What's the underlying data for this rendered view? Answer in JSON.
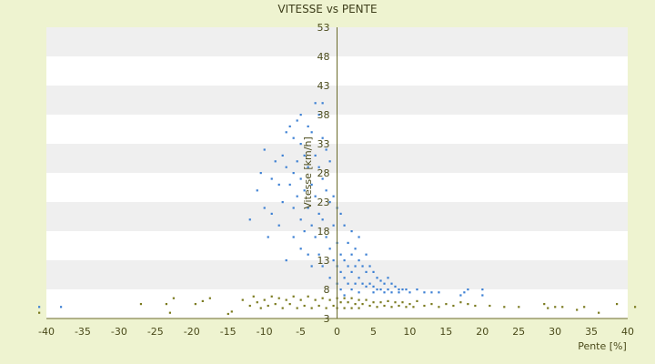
{
  "chart_data": {
    "type": "scatter",
    "title": "VITESSE vs PENTE",
    "xlabel": "Pente [%]",
    "ylabel": "Vitesse [km/h]",
    "xlim": [
      -40,
      40
    ],
    "ylim": [
      3,
      53
    ],
    "x_ticks": [
      "-40",
      "-35",
      "-30",
      "-25",
      "-20",
      "-15",
      "-10",
      "-5",
      "0",
      "5",
      "10",
      "15",
      "20",
      "25",
      "30",
      "35",
      "40"
    ],
    "y_ticks": [
      "3",
      "8",
      "13",
      "18",
      "23",
      "28",
      "33",
      "38",
      "43",
      "48",
      "53"
    ],
    "grid": "horizontal alternating bands",
    "legend": "none",
    "colors": {
      "background": "#eef3d0",
      "plot_band_white": "#ffffff",
      "plot_band_gray": "#efefef",
      "series_blue": "#3b7fd3",
      "series_olive": "#7a7a1e",
      "axis": "#6b6b2a"
    },
    "series": [
      {
        "color": "#3b7fd3",
        "points": [
          [
            -41,
            5.0
          ],
          [
            -38,
            5.0
          ],
          [
            -12,
            20.0
          ],
          [
            -11,
            25.0
          ],
          [
            -10.5,
            28.0
          ],
          [
            -10,
            32.0
          ],
          [
            -10,
            22.0
          ],
          [
            -9.5,
            17.0
          ],
          [
            -9,
            21.0
          ],
          [
            -9,
            27.0
          ],
          [
            -8.5,
            30.0
          ],
          [
            -8,
            26.0
          ],
          [
            -8,
            19.0
          ],
          [
            -7.5,
            23.0
          ],
          [
            -7.5,
            31.0
          ],
          [
            -7,
            35.0
          ],
          [
            -7,
            29.0
          ],
          [
            -7,
            13.0
          ],
          [
            -6.5,
            36.0
          ],
          [
            -6.5,
            26.0
          ],
          [
            -6,
            34.0
          ],
          [
            -6,
            28.0
          ],
          [
            -6,
            22.0
          ],
          [
            -6,
            17.0
          ],
          [
            -5.5,
            37.0
          ],
          [
            -5.5,
            30.0
          ],
          [
            -5.5,
            24.0
          ],
          [
            -5,
            38.0
          ],
          [
            -5,
            33.0
          ],
          [
            -5,
            27.0
          ],
          [
            -5,
            20.0
          ],
          [
            -5,
            15.0
          ],
          [
            -4.5,
            31.0
          ],
          [
            -4.5,
            25.0
          ],
          [
            -4.5,
            18.0
          ],
          [
            -4,
            36.0
          ],
          [
            -4,
            29.0
          ],
          [
            -4,
            22.0
          ],
          [
            -4,
            14.0
          ],
          [
            -3.5,
            35.0
          ],
          [
            -3.5,
            26.0
          ],
          [
            -3.5,
            19.0
          ],
          [
            -3.5,
            12.0
          ],
          [
            -3,
            40.0
          ],
          [
            -3,
            31.0
          ],
          [
            -3,
            24.0
          ],
          [
            -3,
            17.0
          ],
          [
            -2.5,
            38.0
          ],
          [
            -2.5,
            29.0
          ],
          [
            -2.5,
            21.0
          ],
          [
            -2.5,
            14.0
          ],
          [
            -2,
            40.0
          ],
          [
            -2,
            34.0
          ],
          [
            -2,
            27.0
          ],
          [
            -2,
            20.0
          ],
          [
            -2,
            12.0
          ],
          [
            -1.5,
            32.0
          ],
          [
            -1.5,
            25.0
          ],
          [
            -1.5,
            17.0
          ],
          [
            -1,
            30.0
          ],
          [
            -1,
            23.0
          ],
          [
            -1,
            15.0
          ],
          [
            -1,
            10.0
          ],
          [
            -0.5,
            24.0
          ],
          [
            -0.5,
            19.0
          ],
          [
            -0.5,
            13.0
          ],
          [
            0,
            22.0
          ],
          [
            0,
            16.0
          ],
          [
            0,
            12.0
          ],
          [
            0,
            9.0
          ],
          [
            0.5,
            21.0
          ],
          [
            0.5,
            14.0
          ],
          [
            0.5,
            11.0
          ],
          [
            0.5,
            8.0
          ],
          [
            1,
            19.0
          ],
          [
            1,
            13.0
          ],
          [
            1,
            10.0
          ],
          [
            1,
            7.0
          ],
          [
            1.5,
            16.0
          ],
          [
            1.5,
            12.0
          ],
          [
            1.5,
            9.0
          ],
          [
            2,
            18.0
          ],
          [
            2,
            14.0
          ],
          [
            2,
            11.0
          ],
          [
            2,
            8.0
          ],
          [
            2.5,
            15.0
          ],
          [
            2.5,
            12.0
          ],
          [
            2.5,
            9.0
          ],
          [
            3,
            17.0
          ],
          [
            3,
            13.0
          ],
          [
            3,
            10.0
          ],
          [
            3,
            7.5
          ],
          [
            3.5,
            12.0
          ],
          [
            3.5,
            9.0
          ],
          [
            4,
            14.0
          ],
          [
            4,
            11.0
          ],
          [
            4,
            8.5
          ],
          [
            4.5,
            12.0
          ],
          [
            4.5,
            9.0
          ],
          [
            5,
            11.0
          ],
          [
            5,
            8.5
          ],
          [
            5,
            7.5
          ],
          [
            5.5,
            10.0
          ],
          [
            5.5,
            8.0
          ],
          [
            6,
            9.5
          ],
          [
            6,
            8.0
          ],
          [
            6.5,
            9.0
          ],
          [
            6.5,
            7.5
          ],
          [
            7,
            10.0
          ],
          [
            7,
            8.0
          ],
          [
            7.5,
            9.0
          ],
          [
            7.5,
            7.5
          ],
          [
            8,
            8.5
          ],
          [
            8.5,
            8.0
          ],
          [
            8.5,
            7.5
          ],
          [
            9,
            8.0
          ],
          [
            9.5,
            8.0
          ],
          [
            10,
            7.5
          ],
          [
            11,
            8.0
          ],
          [
            12,
            7.5
          ],
          [
            13,
            7.5
          ],
          [
            14,
            7.5
          ],
          [
            17,
            7.0
          ],
          [
            17.5,
            7.5
          ],
          [
            18,
            8.0
          ],
          [
            20,
            7.0
          ],
          [
            20,
            8.0
          ]
        ]
      },
      {
        "color": "#7a7a1e",
        "points": [
          [
            -41,
            4.0
          ],
          [
            -27,
            5.5
          ],
          [
            -23.5,
            5.5
          ],
          [
            -23,
            4.0
          ],
          [
            -22.5,
            6.5
          ],
          [
            -19.5,
            5.5
          ],
          [
            -18.5,
            6.0
          ],
          [
            -17.5,
            6.5
          ],
          [
            -15,
            3.8
          ],
          [
            -14.5,
            4.2
          ],
          [
            -13,
            6.2
          ],
          [
            -12,
            5.2
          ],
          [
            -11.5,
            6.8
          ],
          [
            -11,
            5.8
          ],
          [
            -10.5,
            4.8
          ],
          [
            -10,
            6.2
          ],
          [
            -9.5,
            5.2
          ],
          [
            -9,
            6.8
          ],
          [
            -8.5,
            5.5
          ],
          [
            -8,
            6.5
          ],
          [
            -7.5,
            4.8
          ],
          [
            -7,
            6.2
          ],
          [
            -6.5,
            5.5
          ],
          [
            -6,
            6.8
          ],
          [
            -5.5,
            4.8
          ],
          [
            -5,
            6.2
          ],
          [
            -4.5,
            5.2
          ],
          [
            -4,
            6.8
          ],
          [
            -3.5,
            4.8
          ],
          [
            -3,
            6.2
          ],
          [
            -2.5,
            5.2
          ],
          [
            -2,
            6.5
          ],
          [
            -1.5,
            4.8
          ],
          [
            -1,
            6.2
          ],
          [
            -0.5,
            5.2
          ],
          [
            0,
            6.5
          ],
          [
            0,
            4.8
          ],
          [
            0.5,
            5.8
          ],
          [
            1,
            6.5
          ],
          [
            1,
            4.8
          ],
          [
            1.5,
            5.8
          ],
          [
            2,
            6.5
          ],
          [
            2,
            4.8
          ],
          [
            2.5,
            5.5
          ],
          [
            3,
            6.2
          ],
          [
            3,
            4.8
          ],
          [
            3.5,
            5.5
          ],
          [
            4,
            6.2
          ],
          [
            4.5,
            5.2
          ],
          [
            5,
            5.8
          ],
          [
            5.5,
            5.0
          ],
          [
            6,
            5.8
          ],
          [
            6.5,
            5.2
          ],
          [
            7,
            6.0
          ],
          [
            7.5,
            5.0
          ],
          [
            8,
            5.8
          ],
          [
            8.5,
            5.2
          ],
          [
            9,
            5.8
          ],
          [
            9.5,
            5.0
          ],
          [
            10,
            5.5
          ],
          [
            10.5,
            5.0
          ],
          [
            11,
            6.0
          ],
          [
            12,
            5.2
          ],
          [
            13,
            5.5
          ],
          [
            14,
            5.0
          ],
          [
            15,
            5.5
          ],
          [
            16,
            5.2
          ],
          [
            17,
            5.8
          ],
          [
            18,
            5.5
          ],
          [
            19,
            5.2
          ],
          [
            21,
            5.2
          ],
          [
            23,
            5.0
          ],
          [
            25,
            5.0
          ],
          [
            28.5,
            5.5
          ],
          [
            29,
            4.8
          ],
          [
            30,
            5.0
          ],
          [
            31,
            5.0
          ],
          [
            33,
            4.5
          ],
          [
            34,
            5.0
          ],
          [
            36,
            4.0
          ],
          [
            38.5,
            5.5
          ],
          [
            41,
            5.0
          ]
        ]
      }
    ]
  }
}
